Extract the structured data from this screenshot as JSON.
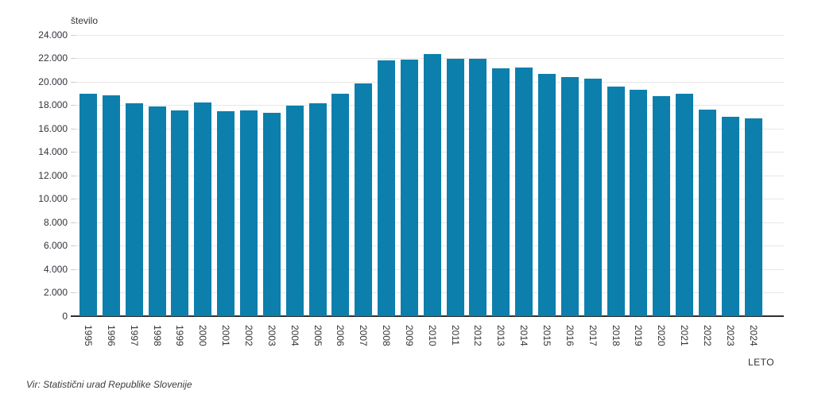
{
  "colors": {
    "bar": "#0c7fad",
    "grid": "#e6e6e6",
    "axis": "#2f2f2f",
    "text": "#333333"
  },
  "source_note": "Vir: Statistični urad Republike Slovenije",
  "chart_data": {
    "type": "bar",
    "title": "",
    "ylabel": "število",
    "xlabel": "LETO",
    "ylim": [
      0,
      24000
    ],
    "grid": true,
    "legend": "none",
    "yticks": [
      {
        "value": 0,
        "label": "0"
      },
      {
        "value": 2000,
        "label": "2.000"
      },
      {
        "value": 4000,
        "label": "4.000"
      },
      {
        "value": 6000,
        "label": "6.000"
      },
      {
        "value": 8000,
        "label": "8.000"
      },
      {
        "value": 10000,
        "label": "10.000"
      },
      {
        "value": 12000,
        "label": "12.000"
      },
      {
        "value": 14000,
        "label": "14.000"
      },
      {
        "value": 16000,
        "label": "16.000"
      },
      {
        "value": 18000,
        "label": "18.000"
      },
      {
        "value": 20000,
        "label": "20.000"
      },
      {
        "value": 22000,
        "label": "22.000"
      },
      {
        "value": 24000,
        "label": "24.000"
      }
    ],
    "categories": [
      "1995",
      "1996",
      "1997",
      "1998",
      "1999",
      "2000",
      "2001",
      "2002",
      "2003",
      "2004",
      "2005",
      "2006",
      "2007",
      "2008",
      "2009",
      "2010",
      "2011",
      "2012",
      "2013",
      "2014",
      "2015",
      "2016",
      "2017",
      "2018",
      "2019",
      "2020",
      "2021",
      "2022",
      "2023",
      "2024"
    ],
    "values": [
      18980,
      18788,
      18165,
      17856,
      17533,
      18180,
      17477,
      17501,
      17321,
      17961,
      18157,
      18932,
      19823,
      21817,
      21856,
      22343,
      21947,
      21938,
      21111,
      21165,
      20641,
      20345,
      20241,
      19585,
      19328,
      18767,
      18984,
      17627,
      16997,
      16855
    ]
  }
}
